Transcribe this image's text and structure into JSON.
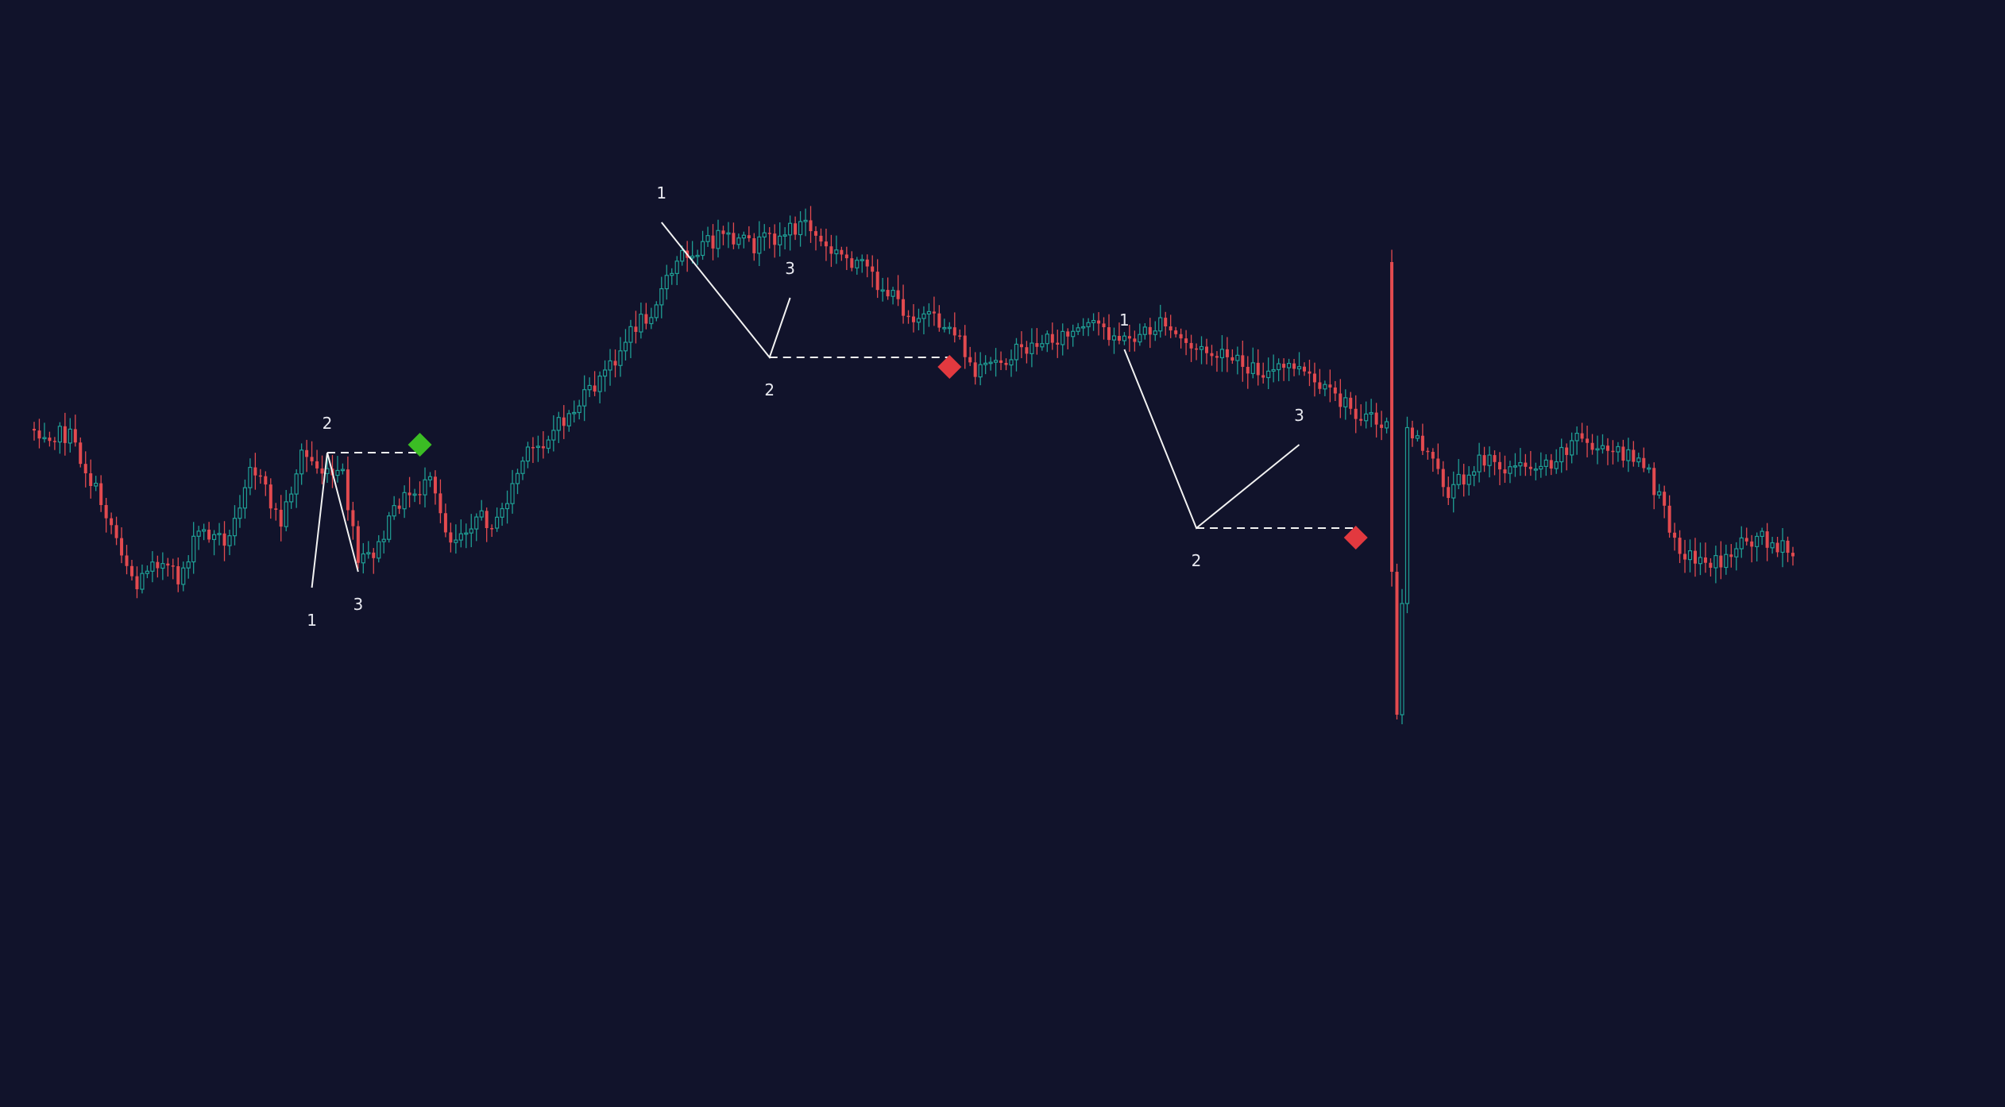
{
  "colors": {
    "background": "#11132b",
    "bullish": "#1f9e94",
    "bearish": "#e24a4f",
    "pattern_line": "#f2f2f2",
    "buy_marker": "#3bbd24",
    "sell_marker": "#e2393f"
  },
  "chart_data": {
    "type": "candlestick",
    "grid": false,
    "legend": "none",
    "xlim": [
      0,
      342
    ],
    "ylim": [
      -100,
      1000
    ],
    "x_axis_labels": "none",
    "y_axis_labels": "none",
    "anchors": [
      [
        0,
        440
      ],
      [
        7,
        450
      ],
      [
        15,
        560
      ],
      [
        20,
        640
      ],
      [
        23,
        600
      ],
      [
        28,
        630
      ],
      [
        32,
        570
      ],
      [
        38,
        580
      ],
      [
        42,
        480
      ],
      [
        48,
        560
      ],
      [
        52,
        470
      ],
      [
        57,
        500
      ],
      [
        60,
        500
      ],
      [
        63,
        610
      ],
      [
        67,
        590
      ],
      [
        71,
        530
      ],
      [
        77,
        510
      ],
      [
        81,
        580
      ],
      [
        86,
        550
      ],
      [
        90,
        560
      ],
      [
        95,
        480
      ],
      [
        103,
        430
      ],
      [
        110,
        380
      ],
      [
        117,
        310
      ],
      [
        120,
        290
      ],
      [
        126,
        220
      ],
      [
        133,
        200
      ],
      [
        140,
        210
      ],
      [
        150,
        180
      ],
      [
        154,
        215
      ],
      [
        160,
        230
      ],
      [
        170,
        295
      ],
      [
        173,
        300
      ],
      [
        179,
        315
      ],
      [
        183,
        375
      ],
      [
        186,
        360
      ],
      [
        189,
        350
      ],
      [
        196,
        330
      ],
      [
        207,
        310
      ],
      [
        212,
        330
      ],
      [
        219,
        310
      ],
      [
        226,
        340
      ],
      [
        231,
        350
      ],
      [
        240,
        370
      ],
      [
        245,
        360
      ],
      [
        250,
        390
      ],
      [
        260,
        430
      ],
      [
        269,
        450
      ],
      [
        275,
        520
      ],
      [
        281,
        480
      ],
      [
        288,
        490
      ],
      [
        295,
        480
      ],
      [
        300,
        450
      ],
      [
        305,
        470
      ],
      [
        310,
        470
      ],
      [
        314,
        500
      ],
      [
        318,
        560
      ],
      [
        321,
        600
      ],
      [
        328,
        610
      ],
      [
        332,
        580
      ],
      [
        336,
        575
      ],
      [
        342,
        600
      ]
    ],
    "shocks": [
      [
        264,
        230,
        620
      ],
      [
        265,
        620,
        800
      ],
      [
        266,
        800,
        660
      ]
    ],
    "patterns": [
      {
        "direction": "bullish",
        "points": [
          [
            54,
            640
          ],
          [
            57,
            470
          ],
          [
            63,
            620
          ]
        ],
        "labels": [
          "1",
          "2",
          "3"
        ],
        "signal": [
          75,
          470
        ],
        "label_positions": [
          "below",
          "above",
          "below"
        ]
      },
      {
        "direction": "bearish",
        "points": [
          [
            122,
            180
          ],
          [
            143,
            350
          ],
          [
            147,
            275
          ]
        ],
        "labels": [
          "1",
          "2",
          "3"
        ],
        "signal": [
          178,
          350
        ],
        "label_positions": [
          "above",
          "below",
          "above"
        ]
      },
      {
        "direction": "bearish",
        "points": [
          [
            212,
            340
          ],
          [
            226,
            565
          ],
          [
            246,
            460
          ]
        ],
        "labels": [
          "1",
          "2",
          "3"
        ],
        "signal": [
          257,
          565
        ],
        "label_positions": [
          "above",
          "below",
          "above"
        ]
      }
    ]
  }
}
